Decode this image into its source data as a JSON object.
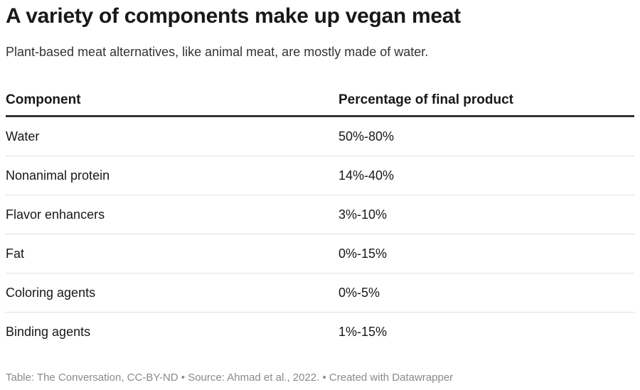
{
  "title": "A variety of components make up vegan meat",
  "subtitle": "Plant-based meat alternatives, like animal meat, are mostly made of water.",
  "table": {
    "headers": [
      "Component",
      "Percentage of final product"
    ],
    "rows": [
      [
        "Water",
        "50%-80%"
      ],
      [
        "Nonanimal protein",
        "14%-40%"
      ],
      [
        "Flavor enhancers",
        "3%-10%"
      ],
      [
        "Fat",
        "0%-15%"
      ],
      [
        "Coloring agents",
        "0%-5%"
      ],
      [
        "Binding agents",
        "1%-15%"
      ]
    ]
  },
  "footer": "Table: The Conversation, CC-BY-ND • Source: Ahmad et al., 2022. • Created with Datawrapper"
}
